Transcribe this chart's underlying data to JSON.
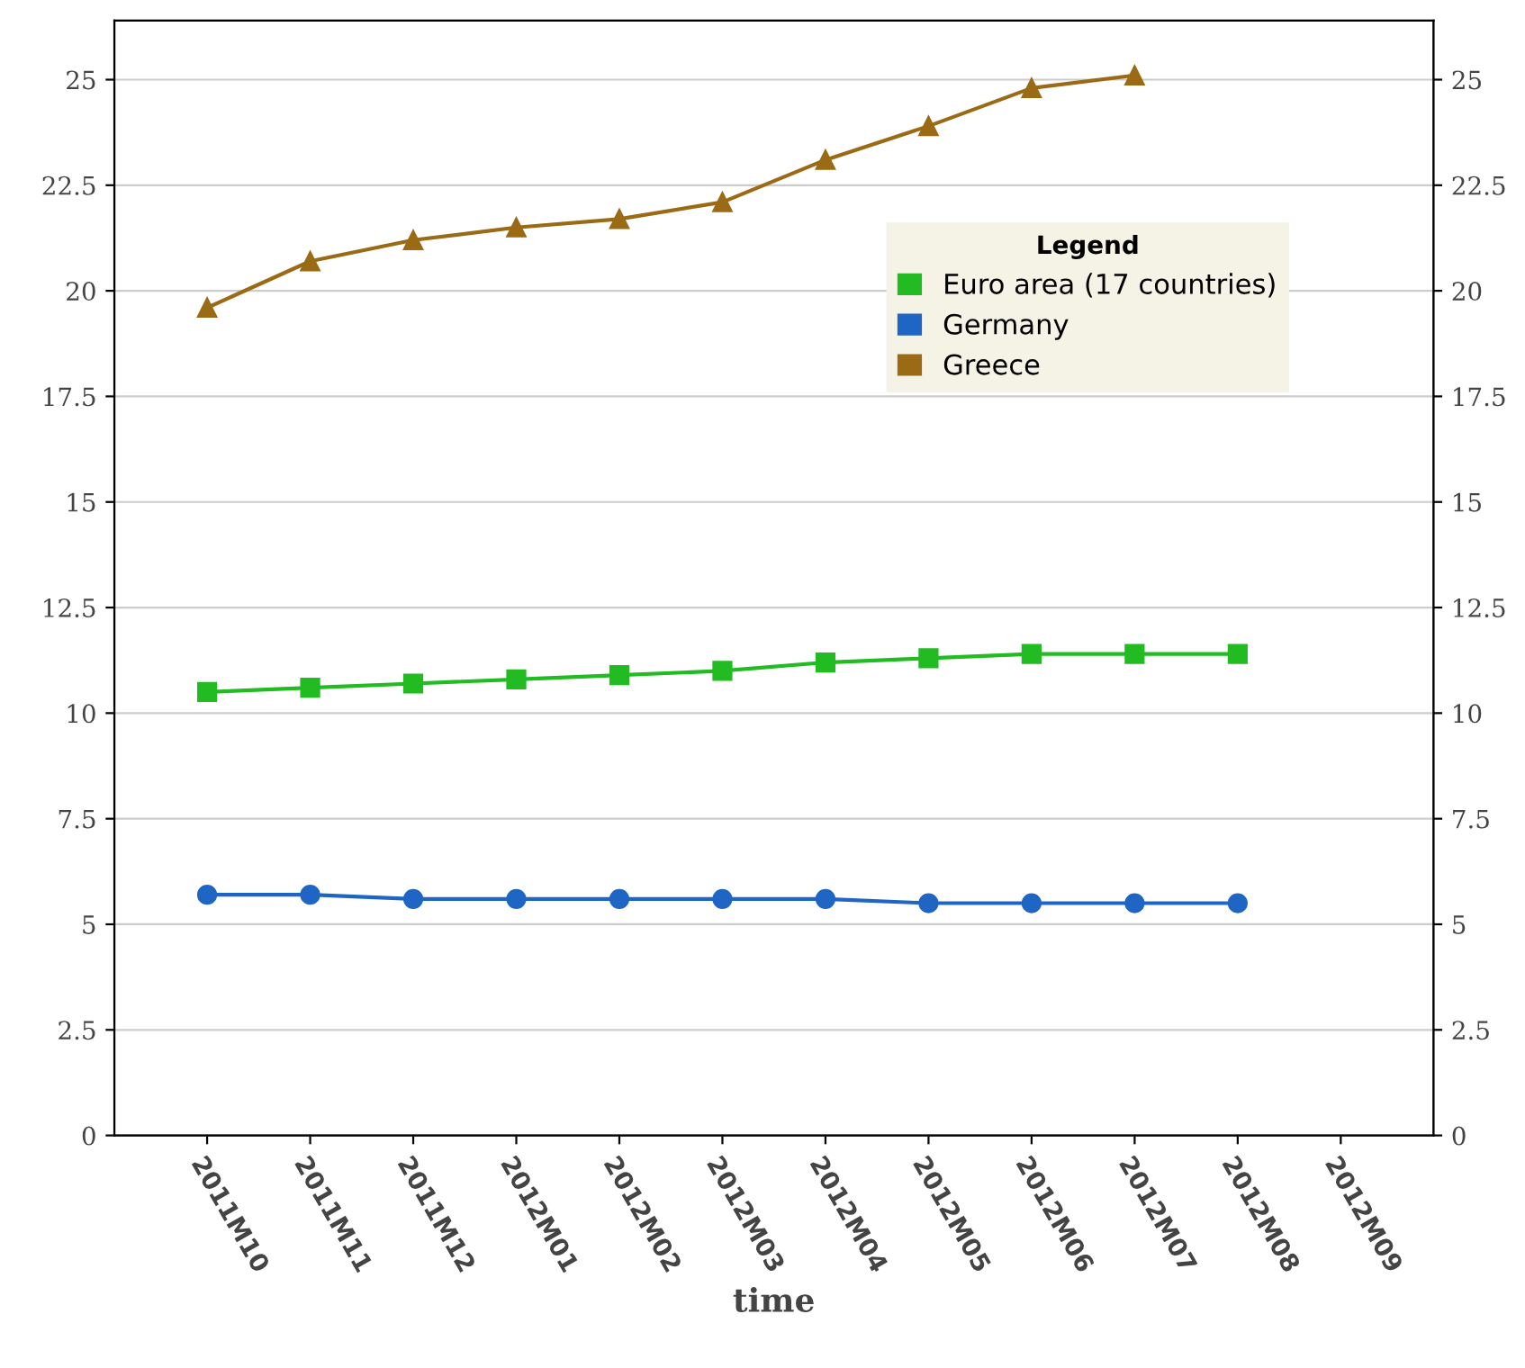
{
  "chart_data": {
    "type": "line",
    "xlabel": "time",
    "legend_title": "Legend",
    "categories": [
      "2011M10",
      "2011M11",
      "2011M12",
      "2012M01",
      "2012M02",
      "2012M03",
      "2012M04",
      "2012M05",
      "2012M06",
      "2012M07",
      "2012M08",
      "2012M09"
    ],
    "series": [
      {
        "name": "Euro area (17 countries)",
        "color": "#22bb22",
        "marker": "square",
        "values": [
          10.5,
          10.6,
          10.7,
          10.8,
          10.9,
          11.0,
          11.2,
          11.3,
          11.4,
          11.4,
          11.4,
          null
        ]
      },
      {
        "name": "Germany",
        "color": "#1f66c4",
        "marker": "circle",
        "values": [
          5.7,
          5.7,
          5.6,
          5.6,
          5.6,
          5.6,
          5.6,
          5.5,
          5.5,
          5.5,
          5.5,
          null
        ]
      },
      {
        "name": "Greece",
        "color": "#9a6b14",
        "marker": "triangle",
        "values": [
          19.6,
          20.7,
          21.2,
          21.5,
          21.7,
          22.1,
          23.1,
          23.9,
          24.8,
          25.1,
          null,
          null
        ]
      }
    ],
    "ylim": [
      0,
      26.4
    ],
    "yticks": [
      0,
      2.5,
      5,
      7.5,
      10,
      12.5,
      15,
      17.5,
      20,
      22.5,
      25
    ],
    "y2lim": [
      0,
      26.4
    ],
    "y2ticks": [
      0,
      2.5,
      5,
      7.5,
      10,
      12.5,
      15,
      17.5,
      20,
      22.5,
      25
    ],
    "grid": "y",
    "legend": "top right"
  }
}
